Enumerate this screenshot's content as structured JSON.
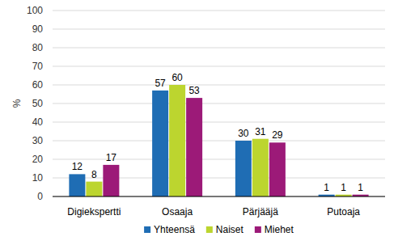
{
  "chart_data": {
    "type": "bar",
    "ylabel": "%",
    "categories": [
      "Digiekspertti",
      "Osaaja",
      "Pärjääjä",
      "Putoaja"
    ],
    "series": [
      {
        "name": "Yhteensä",
        "color": "#1f6db4",
        "values": [
          12,
          57,
          30,
          1
        ]
      },
      {
        "name": "Naiset",
        "color": "#bcd52f",
        "values": [
          8,
          60,
          31,
          1
        ]
      },
      {
        "name": "Miehet",
        "color": "#9c1a78",
        "values": [
          17,
          53,
          29,
          1
        ]
      }
    ],
    "ylim": [
      0,
      100
    ],
    "yticks": [
      0,
      10,
      20,
      30,
      40,
      50,
      60,
      70,
      80,
      90,
      100
    ],
    "grid": true,
    "legend": "bottom",
    "data_labels": true
  }
}
